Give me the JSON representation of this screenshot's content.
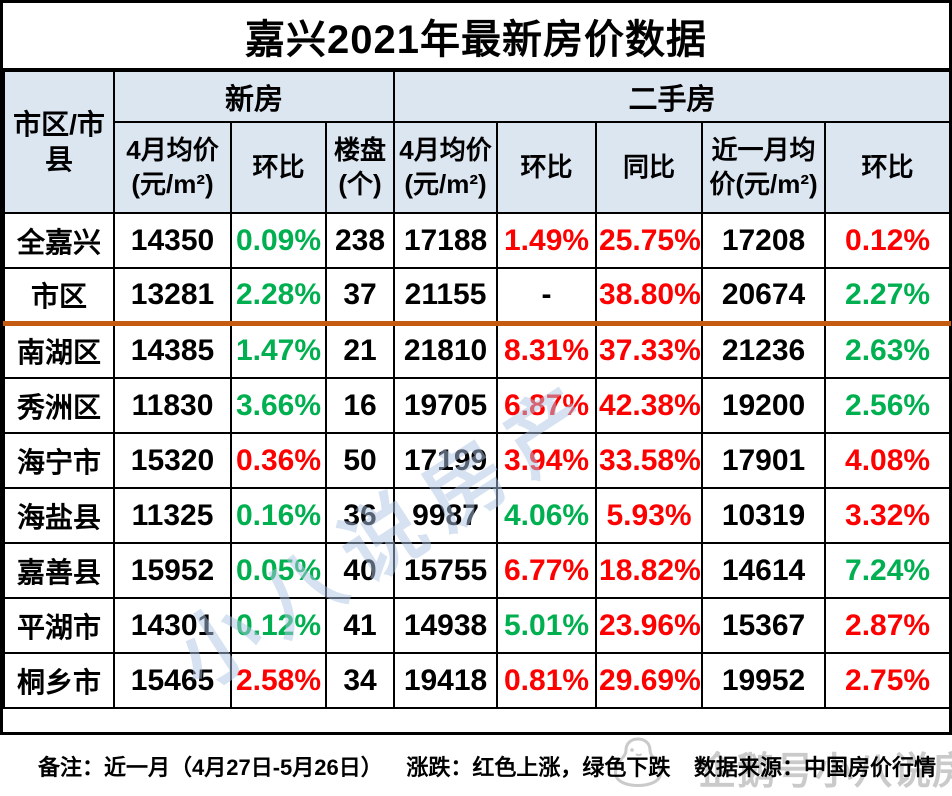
{
  "page_title": "嘉兴2021年最新房价数据",
  "colors": {
    "up_red": "#ff0000",
    "down_green": "#00b050",
    "header_bg": "#dce6f1",
    "divider_orange": "#c55a11",
    "border_black": "#000000",
    "watermark_center_blue": "rgba(173,197,227,0.5)",
    "watermark_corner_gray": "rgba(158,158,158,0.55)"
  },
  "chart_data": {
    "type": "table",
    "title": "嘉兴2021年最新房价数据",
    "corner_header": "市区/市县",
    "groups": [
      {
        "label": "新房",
        "cols": 3
      },
      {
        "label": "二手房",
        "cols": 5
      }
    ],
    "sub_headers": [
      "4月均价(元/m²)",
      "环比",
      "楼盘(个)",
      "4月均价(元/m²)",
      "环比",
      "同比",
      "近一月均价(元/m²)",
      "环比"
    ],
    "rows": [
      {
        "label": "全嘉兴",
        "values": [
          "14350",
          "0.09%",
          "238",
          "17188",
          "1.49%",
          "25.75%",
          "17208",
          "0.12%"
        ],
        "trend": [
          "flat",
          "down",
          "flat",
          "flat",
          "up",
          "up",
          "flat",
          "up"
        ],
        "divider_after": false
      },
      {
        "label": "市区",
        "values": [
          "13281",
          "2.28%",
          "37",
          "21155",
          "-",
          "38.80%",
          "20674",
          "2.27%"
        ],
        "trend": [
          "flat",
          "down",
          "flat",
          "flat",
          "flat",
          "up",
          "flat",
          "down"
        ],
        "divider_after": true
      },
      {
        "label": "南湖区",
        "values": [
          "14385",
          "1.47%",
          "21",
          "21810",
          "8.31%",
          "37.33%",
          "21236",
          "2.63%"
        ],
        "trend": [
          "flat",
          "down",
          "flat",
          "flat",
          "up",
          "up",
          "flat",
          "down"
        ],
        "divider_after": false
      },
      {
        "label": "秀洲区",
        "values": [
          "11830",
          "3.66%",
          "16",
          "19705",
          "6.87%",
          "42.38%",
          "19200",
          "2.56%"
        ],
        "trend": [
          "flat",
          "down",
          "flat",
          "flat",
          "up",
          "up",
          "flat",
          "down"
        ],
        "divider_after": false
      },
      {
        "label": "海宁市",
        "values": [
          "15320",
          "0.36%",
          "50",
          "17199",
          "3.94%",
          "33.58%",
          "17901",
          "4.08%"
        ],
        "trend": [
          "flat",
          "up",
          "flat",
          "flat",
          "up",
          "up",
          "flat",
          "up"
        ],
        "divider_after": false
      },
      {
        "label": "海盐县",
        "values": [
          "11325",
          "0.16%",
          "36",
          "9987",
          "4.06%",
          "5.93%",
          "10319",
          "3.32%"
        ],
        "trend": [
          "flat",
          "down",
          "flat",
          "flat",
          "down",
          "up",
          "flat",
          "up"
        ],
        "divider_after": false
      },
      {
        "label": "嘉善县",
        "values": [
          "15952",
          "0.05%",
          "40",
          "15755",
          "6.77%",
          "18.82%",
          "14614",
          "7.24%"
        ],
        "trend": [
          "flat",
          "down",
          "flat",
          "flat",
          "up",
          "up",
          "flat",
          "down"
        ],
        "divider_after": false
      },
      {
        "label": "平湖市",
        "values": [
          "14301",
          "0.12%",
          "41",
          "14938",
          "5.01%",
          "23.96%",
          "15367",
          "2.87%"
        ],
        "trend": [
          "flat",
          "down",
          "flat",
          "flat",
          "down",
          "up",
          "flat",
          "up"
        ],
        "divider_after": false
      },
      {
        "label": "桐乡市",
        "values": [
          "15465",
          "2.58%",
          "34",
          "19418",
          "0.81%",
          "29.69%",
          "19952",
          "2.75%"
        ],
        "trend": [
          "flat",
          "up",
          "flat",
          "flat",
          "up",
          "up",
          "flat",
          "up"
        ],
        "divider_after": false
      }
    ],
    "color_coding": {
      "up": "红色上涨",
      "down": "绿色下跌"
    }
  },
  "footer": {
    "note": "备注：近一月（4月27日-5月26日）",
    "legend": "涨跌：红色上涨，绿色下跌",
    "source": "数据来源：中国房价行情"
  },
  "watermarks": {
    "center_text": "小八说房产",
    "corner_text": "企鹅号小八说房产"
  }
}
